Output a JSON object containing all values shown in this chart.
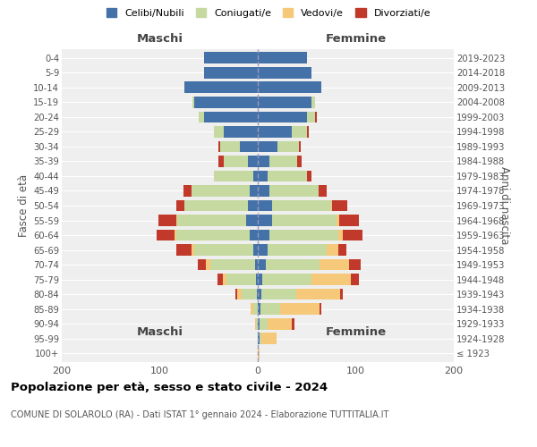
{
  "age_groups": [
    "100+",
    "95-99",
    "90-94",
    "85-89",
    "80-84",
    "75-79",
    "70-74",
    "65-69",
    "60-64",
    "55-59",
    "50-54",
    "45-49",
    "40-44",
    "35-39",
    "30-34",
    "25-29",
    "20-24",
    "15-19",
    "10-14",
    "5-9",
    "0-4"
  ],
  "birth_years": [
    "≤ 1923",
    "1924-1928",
    "1929-1933",
    "1934-1938",
    "1939-1943",
    "1944-1948",
    "1949-1953",
    "1954-1958",
    "1959-1963",
    "1964-1968",
    "1969-1973",
    "1974-1978",
    "1979-1983",
    "1984-1988",
    "1989-1993",
    "1994-1998",
    "1999-2003",
    "2004-2008",
    "2009-2013",
    "2014-2018",
    "2019-2023"
  ],
  "male": {
    "celibe": [
      0,
      0,
      0,
      0,
      1,
      2,
      3,
      5,
      8,
      12,
      10,
      8,
      5,
      10,
      18,
      35,
      55,
      65,
      75,
      55,
      55
    ],
    "coniugato": [
      0,
      0,
      2,
      5,
      15,
      30,
      45,
      60,
      75,
      70,
      65,
      60,
      40,
      25,
      20,
      10,
      5,
      2,
      0,
      0,
      0
    ],
    "vedovo": [
      0,
      0,
      1,
      2,
      5,
      4,
      5,
      3,
      2,
      1,
      0,
      0,
      0,
      0,
      0,
      0,
      0,
      0,
      0,
      0,
      0
    ],
    "divorziato": [
      0,
      0,
      0,
      0,
      2,
      5,
      8,
      15,
      18,
      18,
      8,
      8,
      0,
      5,
      2,
      0,
      0,
      0,
      0,
      0,
      0
    ]
  },
  "female": {
    "nubile": [
      0,
      2,
      2,
      3,
      4,
      5,
      8,
      10,
      12,
      15,
      15,
      12,
      10,
      12,
      20,
      35,
      50,
      55,
      65,
      55,
      50
    ],
    "coniugata": [
      0,
      2,
      8,
      20,
      35,
      50,
      55,
      60,
      70,
      65,
      60,
      50,
      40,
      28,
      22,
      15,
      8,
      3,
      0,
      0,
      0
    ],
    "vedova": [
      2,
      15,
      25,
      40,
      45,
      40,
      30,
      12,
      5,
      3,
      1,
      0,
      0,
      0,
      0,
      0,
      0,
      0,
      0,
      0,
      0
    ],
    "divorziata": [
      0,
      0,
      2,
      2,
      3,
      8,
      12,
      8,
      20,
      20,
      15,
      8,
      5,
      5,
      2,
      2,
      2,
      0,
      0,
      0,
      0
    ]
  },
  "colors": {
    "celibe": "#4472a8",
    "coniugato": "#c5d9a0",
    "vedovo": "#f5c87a",
    "divorziato": "#c0392b"
  },
  "title": "Popolazione per età, sesso e stato civile - 2024",
  "subtitle": "COMUNE DI SOLAROLO (RA) - Dati ISTAT 1° gennaio 2024 - Elaborazione TUTTITALIA.IT",
  "xlabel_left": "Maschi",
  "xlabel_right": "Femmine",
  "ylabel_left": "Fasce di età",
  "ylabel_right": "Anni di nascita",
  "xlim": 200,
  "legend_labels": [
    "Celibi/Nubili",
    "Coniugati/e",
    "Vedovi/e",
    "Divorziati/e"
  ]
}
